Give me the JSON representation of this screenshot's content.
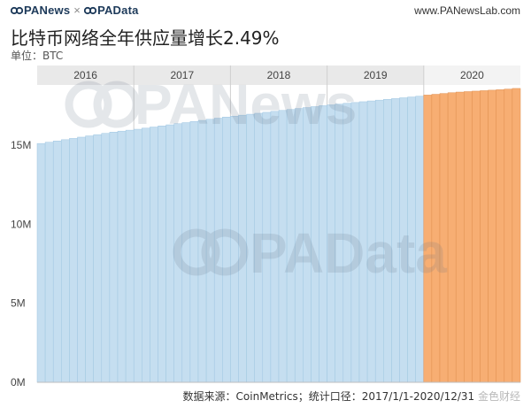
{
  "header": {
    "brand_left": "PANews",
    "brand_sep": "×",
    "brand_right": "PAData",
    "site": "www.PANewsLab.com"
  },
  "title": "比特币网络全年供应量增长2.49%",
  "subtitle": "单位：BTC",
  "footer": {
    "source": "数据来源：CoinMetrics；统计口径：",
    "source_tail": "2017/1/1-2020/12/31",
    "watermark": "金色财经"
  },
  "watermarks": {
    "top": "PANews",
    "bottom": "PAData"
  },
  "colors": {
    "historic": "#c5def0",
    "historic_edge": "#9fc6e2",
    "highlight": "#f7ae73",
    "highlight_edge": "#e08f4f",
    "year_band": "#e9e9e9",
    "gridline": "#d8d8d8"
  },
  "chart_data": {
    "type": "bar",
    "years": [
      "2016",
      "2017",
      "2018",
      "2019",
      "2020"
    ],
    "highlight_year": "2020",
    "ylim": [
      0,
      18800000
    ],
    "yticks": [
      0,
      5000000,
      10000000,
      15000000
    ],
    "ytick_labels": [
      "0M",
      "5M",
      "10M",
      "15M"
    ],
    "xlabel": "",
    "ylabel": "",
    "grid": true,
    "series": [
      {
        "categories": [
          "2016-01",
          "2016-02",
          "2016-03",
          "2016-04",
          "2016-05",
          "2016-06",
          "2016-07",
          "2016-08",
          "2016-09",
          "2016-10",
          "2016-11",
          "2016-12",
          "2017-01",
          "2017-02",
          "2017-03",
          "2017-04",
          "2017-05",
          "2017-06",
          "2017-07",
          "2017-08",
          "2017-09",
          "2017-10",
          "2017-11",
          "2017-12",
          "2018-01",
          "2018-02",
          "2018-03",
          "2018-04",
          "2018-05",
          "2018-06",
          "2018-07",
          "2018-08",
          "2018-09",
          "2018-10",
          "2018-11",
          "2018-12",
          "2019-01",
          "2019-02",
          "2019-03",
          "2019-04",
          "2019-05",
          "2019-06",
          "2019-07",
          "2019-08",
          "2019-09",
          "2019-10",
          "2019-11",
          "2019-12",
          "2020-01",
          "2020-02",
          "2020-03",
          "2020-04",
          "2020-05",
          "2020-06",
          "2020-07",
          "2020-08",
          "2020-09",
          "2020-10",
          "2020-11",
          "2020-12"
        ],
        "values": [
          15100000,
          15180000,
          15260000,
          15340000,
          15420000,
          15500000,
          15580000,
          15660000,
          15740000,
          15820000,
          15880000,
          15940000,
          16000000,
          16070000,
          16140000,
          16210000,
          16280000,
          16350000,
          16420000,
          16490000,
          16560000,
          16630000,
          16700000,
          16770000,
          16830000,
          16890000,
          16950000,
          17010000,
          17070000,
          17130000,
          17190000,
          17250000,
          17310000,
          17370000,
          17430000,
          17490000,
          17540000,
          17590000,
          17640000,
          17690000,
          17740000,
          17790000,
          17840000,
          17890000,
          17940000,
          17990000,
          18040000,
          18090000,
          18160000,
          18210000,
          18260000,
          18310000,
          18350000,
          18380000,
          18410000,
          18440000,
          18470000,
          18500000,
          18540000,
          18580000
        ]
      }
    ]
  }
}
